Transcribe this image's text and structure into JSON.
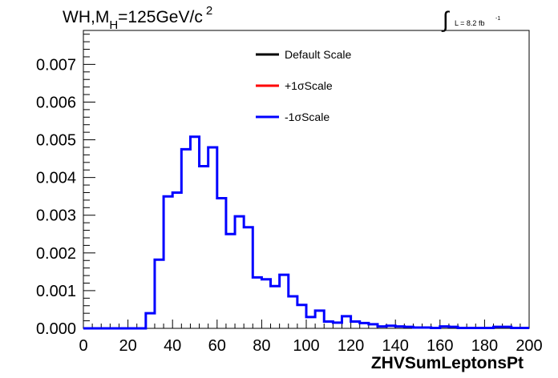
{
  "chart_data": {
    "type": "histogram",
    "title_parts": {
      "prefix": "WH,M",
      "subscript": "H",
      "suffix": "=125GeV/c",
      "superscript": "2"
    },
    "luminosity": {
      "integral_symbol": "∫",
      "text": "L = 8.2 fb",
      "superscript": "-1"
    },
    "xlabel": "ZHVSumLeptonsPt",
    "ylabel": "",
    "xlim": [
      0,
      200
    ],
    "ylim": [
      0,
      0.0079
    ],
    "x_ticks": [
      "0",
      "20",
      "40",
      "60",
      "80",
      "100",
      "120",
      "140",
      "160",
      "180",
      "200"
    ],
    "y_ticks": [
      "0.000",
      "0.001",
      "0.002",
      "0.003",
      "0.004",
      "0.005",
      "0.006",
      "0.007"
    ],
    "bin_width": 4,
    "legend": [
      {
        "label": "Default Scale",
        "color": "#000000"
      },
      {
        "label": "+1σScale",
        "color": "#ff0000"
      },
      {
        "label": "-1σScale",
        "color": "#0000ff"
      }
    ],
    "series": [
      {
        "name": "-1σScale",
        "color": "#0000ff",
        "bin_edges_start": 0,
        "values": [
          0,
          0,
          0,
          0,
          0,
          0,
          0,
          0.0004,
          0.00182,
          0.0035,
          0.0036,
          0.00475,
          0.00508,
          0.0043,
          0.0048,
          0.00345,
          0.0025,
          0.00297,
          0.00268,
          0.00135,
          0.0013,
          0.00112,
          0.00142,
          0.00085,
          0.00062,
          0.0003,
          0.00047,
          0.00018,
          0.00015,
          0.00032,
          0.00018,
          0.00014,
          0.00011,
          5e-05,
          7e-05,
          5e-05,
          4e-05,
          2e-05,
          2e-05,
          1e-05,
          5e-05,
          4e-05,
          1e-05,
          1e-05,
          1e-05,
          1e-05,
          4e-05,
          4e-05,
          1e-05,
          1e-05
        ]
      }
    ]
  }
}
